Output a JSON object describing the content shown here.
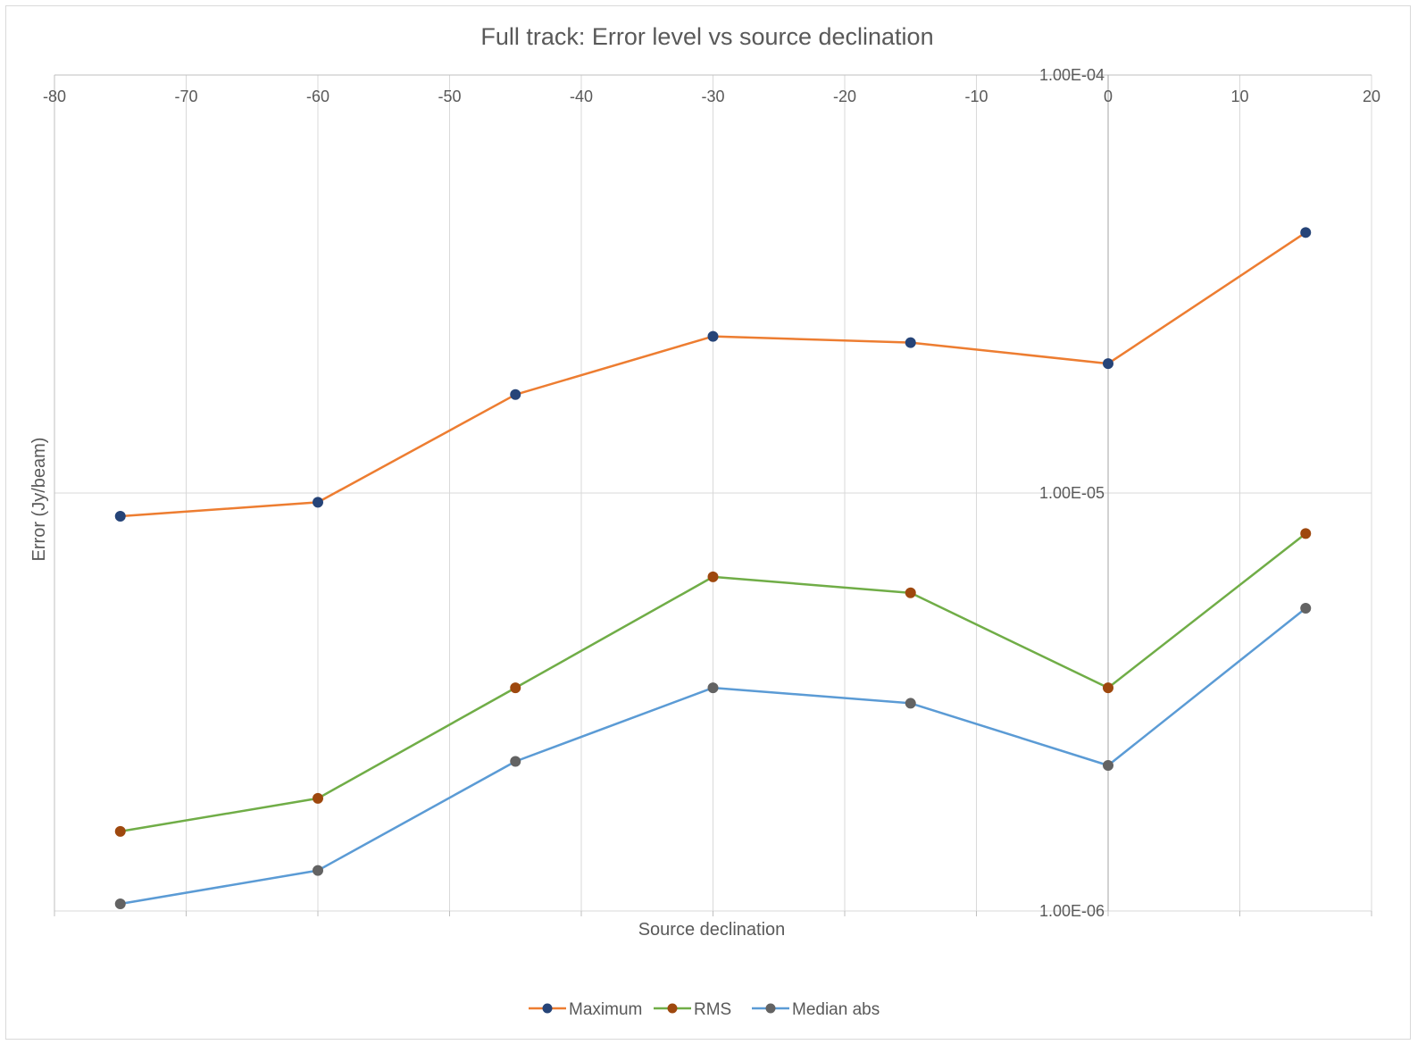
{
  "chart_data": {
    "type": "line",
    "title": "Full track: Error level vs source declination",
    "xlabel": "Source declination",
    "ylabel": "Error (Jy/beam)",
    "xlim": [
      -80,
      20
    ],
    "x_ticks": [
      "-80",
      "-70",
      "-60",
      "-50",
      "-40",
      "-30",
      "-20",
      "-10",
      "0",
      "10",
      "20"
    ],
    "ylim": [
      1e-06,
      0.0001
    ],
    "y_scale": "log",
    "y_ticks": [
      "1.00E-04",
      "1.00E-05",
      "1.00E-06"
    ],
    "grid": true,
    "legend_position": "bottom",
    "x": [
      -75,
      -60,
      -45,
      -30,
      -15,
      0,
      15
    ],
    "series": [
      {
        "name": "Maximum",
        "values": [
          8.8e-06,
          9.5e-06,
          1.72e-05,
          2.37e-05,
          2.29e-05,
          2.04e-05,
          4.2e-05
        ],
        "line_color": "#ED7D31",
        "marker_color": "#264478"
      },
      {
        "name": "RMS",
        "values": [
          1.55e-06,
          1.86e-06,
          3.42e-06,
          6.3e-06,
          5.77e-06,
          3.42e-06,
          8e-06
        ],
        "line_color": "#70AD47",
        "marker_color": "#9E480E"
      },
      {
        "name": "Median abs",
        "values": [
          1.04e-06,
          1.25e-06,
          2.28e-06,
          3.42e-06,
          3.14e-06,
          2.23e-06,
          5.3e-06
        ],
        "line_color": "#5B9BD5",
        "marker_color": "#636363"
      }
    ]
  }
}
